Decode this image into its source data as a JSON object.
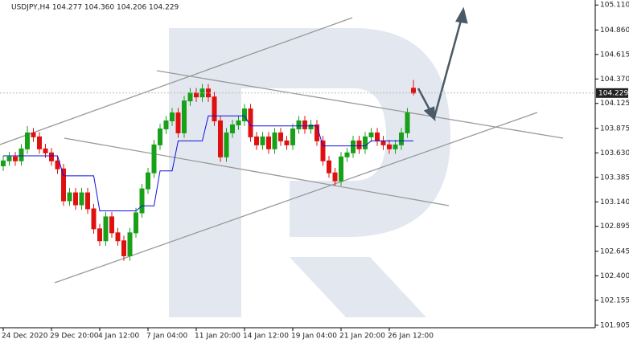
{
  "chart_data": {
    "type": "candlestick",
    "title": "USDJPY,H4  104.277 104.360 104.206 104.229",
    "current_price": {
      "value": 104.229,
      "label": "104.229"
    },
    "up_color": "#18a018",
    "down_color": "#e01010",
    "categories": [
      "24 Dec 2020",
      null,
      null,
      null,
      null,
      null,
      null,
      null,
      "29 Dec 20:00",
      null,
      null,
      null,
      null,
      null,
      null,
      null,
      "4 Jan 12:00",
      null,
      null,
      null,
      null,
      null,
      null,
      null,
      "7 Jan 04:00",
      null,
      null,
      null,
      null,
      null,
      null,
      null,
      "11 Jan 20:00",
      null,
      null,
      null,
      null,
      null,
      null,
      null,
      "14 Jan 12:00",
      null,
      null,
      null,
      null,
      null,
      null,
      null,
      "19 Jan 04:00",
      null,
      null,
      null,
      null,
      null,
      null,
      null,
      "21 Jan 20:00",
      null,
      null,
      null,
      null,
      null,
      null,
      null,
      "26 Jan 12:00",
      null,
      null,
      null,
      null
    ],
    "open": [
      103.5,
      103.55,
      103.59,
      103.55,
      103.67,
      103.83,
      103.79,
      103.67,
      103.63,
      103.55,
      103.47,
      103.15,
      103.23,
      103.11,
      103.23,
      103.07,
      102.87,
      102.75,
      102.99,
      102.83,
      102.75,
      102.6,
      102.83,
      103.03,
      103.27,
      103.43,
      103.71,
      103.87,
      103.95,
      104.03,
      103.83,
      104.15,
      104.23,
      104.19,
      104.27,
      104.19,
      103.95,
      103.59,
      103.83,
      103.91,
      103.95,
      104.07,
      103.79,
      103.71,
      103.79,
      103.67,
      103.83,
      103.75,
      103.71,
      103.87,
      103.95,
      103.87,
      103.91,
      103.75,
      103.55,
      103.43,
      103.35,
      103.59,
      103.63,
      103.75,
      103.67,
      103.79,
      103.83,
      103.75,
      103.71,
      103.67,
      103.71,
      103.83,
      104.277
    ],
    "high": [
      103.6,
      103.64,
      103.64,
      103.72,
      103.9,
      103.88,
      103.84,
      103.72,
      103.68,
      103.6,
      103.52,
      103.28,
      103.28,
      103.28,
      103.28,
      103.12,
      102.92,
      103.04,
      103.04,
      102.88,
      102.8,
      102.88,
      103.08,
      103.32,
      103.48,
      103.76,
      103.92,
      104.0,
      104.08,
      104.08,
      104.2,
      104.28,
      104.28,
      104.32,
      104.32,
      104.24,
      104.0,
      103.88,
      103.96,
      104.0,
      104.12,
      104.12,
      103.84,
      103.84,
      103.84,
      103.88,
      103.88,
      103.8,
      103.92,
      104.0,
      104.0,
      103.96,
      103.96,
      103.8,
      103.6,
      103.48,
      103.64,
      103.68,
      103.8,
      103.8,
      103.84,
      103.88,
      103.88,
      103.8,
      103.76,
      103.76,
      103.88,
      104.08,
      104.36
    ],
    "low": [
      103.45,
      103.5,
      103.5,
      103.5,
      103.62,
      103.74,
      103.62,
      103.58,
      103.5,
      103.42,
      103.1,
      103.1,
      103.06,
      103.06,
      103.02,
      102.82,
      102.7,
      102.7,
      102.78,
      102.7,
      102.55,
      102.55,
      102.78,
      102.98,
      103.22,
      103.38,
      103.66,
      103.82,
      103.9,
      103.78,
      103.78,
      104.1,
      104.14,
      104.14,
      104.14,
      103.9,
      103.54,
      103.54,
      103.78,
      103.86,
      103.9,
      103.74,
      103.66,
      103.66,
      103.62,
      103.62,
      103.7,
      103.66,
      103.66,
      103.82,
      103.82,
      103.82,
      103.7,
      103.5,
      103.38,
      103.3,
      103.3,
      103.54,
      103.58,
      103.62,
      103.62,
      103.74,
      103.7,
      103.66,
      103.62,
      103.62,
      103.66,
      103.78,
      104.206
    ],
    "close": [
      103.55,
      103.59,
      103.55,
      103.67,
      103.83,
      103.79,
      103.67,
      103.63,
      103.55,
      103.47,
      103.15,
      103.23,
      103.11,
      103.23,
      103.07,
      102.87,
      102.75,
      102.99,
      102.83,
      102.75,
      102.6,
      102.83,
      103.03,
      103.27,
      103.43,
      103.71,
      103.87,
      103.95,
      104.03,
      103.83,
      104.15,
      104.23,
      104.19,
      104.27,
      104.19,
      103.95,
      103.59,
      103.83,
      103.91,
      103.95,
      104.07,
      103.79,
      103.71,
      103.79,
      103.67,
      103.83,
      103.75,
      103.71,
      103.87,
      103.95,
      103.87,
      103.91,
      103.75,
      103.55,
      103.43,
      103.35,
      103.59,
      103.63,
      103.75,
      103.67,
      103.79,
      103.83,
      103.75,
      103.71,
      103.67,
      103.71,
      103.83,
      104.03,
      104.229
    ],
    "lines": [
      {
        "color": "#1010e0",
        "values": [
          103.6,
          103.6,
          103.6,
          103.6,
          103.6,
          103.6,
          103.6,
          103.6,
          103.6,
          103.6,
          103.4,
          103.4,
          103.4,
          103.4,
          103.4,
          103.4,
          103.05,
          103.05,
          103.05,
          103.05,
          103.05,
          103.05,
          103.05,
          103.1,
          103.1,
          103.1,
          103.45,
          103.45,
          103.45,
          103.75,
          103.75,
          103.75,
          103.75,
          103.75,
          104.0,
          104.0,
          104.0,
          104.0,
          104.0,
          104.0,
          104.0,
          103.9,
          103.9,
          103.9,
          103.9,
          103.9,
          103.9,
          103.9,
          103.9,
          103.9,
          103.9,
          103.9,
          103.9,
          103.7,
          103.7,
          103.7,
          103.7,
          103.7,
          103.7,
          103.7,
          103.7,
          103.75,
          103.75,
          103.75,
          103.75,
          103.75,
          103.75,
          103.75,
          103.75
        ]
      }
    ],
    "ylim": [
      101.88,
      105.16
    ],
    "yticks": [
      {
        "value": 105.11,
        "label": "105.110"
      },
      {
        "value": 104.86,
        "label": "104.860"
      },
      {
        "value": 104.615,
        "label": "104.615"
      },
      {
        "value": 104.37,
        "label": "104.370"
      },
      {
        "value": 104.125,
        "label": "104.125"
      },
      {
        "value": 103.875,
        "label": "103.875"
      },
      {
        "value": 103.63,
        "label": "103.630"
      },
      {
        "value": 103.385,
        "label": "103.385"
      },
      {
        "value": 103.14,
        "label": "103.140"
      },
      {
        "value": 102.895,
        "label": "102.895"
      },
      {
        "value": 102.645,
        "label": "102.645"
      },
      {
        "value": 102.4,
        "label": "102.400"
      },
      {
        "value": 102.155,
        "label": "102.155"
      },
      {
        "value": 101.905,
        "label": "101.905"
      }
    ]
  }
}
